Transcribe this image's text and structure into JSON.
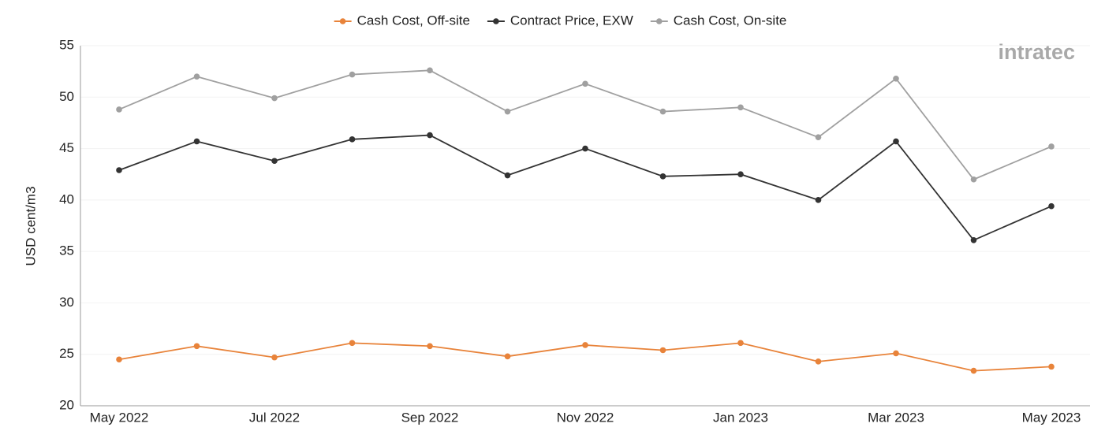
{
  "chart_data": {
    "type": "line",
    "watermark": "intratec",
    "y_label": "USD cent/m3",
    "categories": [
      "May 2022",
      null,
      "Jul 2022",
      null,
      "Sep 2022",
      null,
      "Nov 2022",
      null,
      "Jan 2023",
      null,
      "Mar 2023",
      null,
      "May 2023"
    ],
    "series": [
      {
        "name": "Cash Cost, Off-site",
        "color": "#e8833a",
        "values": [
          24.5,
          25.8,
          24.7,
          26.1,
          25.8,
          24.8,
          25.9,
          25.4,
          26.1,
          24.3,
          25.1,
          23.4,
          23.8
        ]
      },
      {
        "name": "Contract Price, EXW",
        "color": "#333333",
        "values": [
          42.9,
          45.7,
          43.8,
          45.9,
          46.3,
          42.4,
          45.0,
          42.3,
          42.5,
          40.0,
          45.7,
          36.1,
          39.4
        ]
      },
      {
        "name": "Cash Cost, On-site",
        "color": "#a0a0a0",
        "values": [
          48.8,
          52.0,
          49.9,
          52.2,
          52.6,
          48.6,
          51.3,
          48.6,
          49.0,
          46.1,
          51.8,
          42.0,
          45.2
        ]
      }
    ],
    "ylim": [
      20,
      55
    ],
    "yticks": [
      20,
      25,
      30,
      35,
      40,
      45,
      50,
      55
    ],
    "grid": true,
    "legend": "top"
  }
}
